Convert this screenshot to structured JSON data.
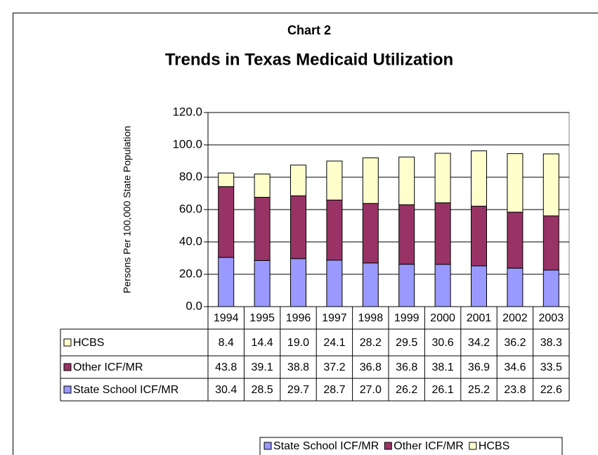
{
  "chart_data": {
    "type": "stacked_bar",
    "title": "Chart 2",
    "subtitle": "Trends in Texas Medicaid Utilization",
    "y_label": "Persons Per 100,000 State Population",
    "categories": [
      "1994",
      "1995",
      "1996",
      "1997",
      "1998",
      "1999",
      "2000",
      "2001",
      "2002",
      "2003"
    ],
    "series": [
      {
        "name": "State School ICF/MR",
        "color": "#9999ff",
        "values": [
          30.4,
          28.5,
          29.7,
          28.7,
          27.0,
          26.2,
          26.1,
          25.2,
          23.8,
          22.6
        ],
        "value_labels": [
          "30.4",
          "28.5",
          "29.7",
          "28.7",
          "27.0",
          "26.2",
          "26.1",
          "25.2",
          "23.8",
          "22.6"
        ]
      },
      {
        "name": "Other ICF/MR",
        "color": "#993366",
        "values": [
          43.8,
          39.1,
          38.8,
          37.2,
          36.8,
          36.8,
          38.1,
          36.9,
          34.6,
          33.5
        ],
        "value_labels": [
          "43.8",
          "39.1",
          "38.8",
          "37.2",
          "36.8",
          "36.8",
          "38.1",
          "36.9",
          "34.6",
          "33.5"
        ]
      },
      {
        "name": "HCBS",
        "color": "#ffffcc",
        "values": [
          8.4,
          14.4,
          19.0,
          24.1,
          28.2,
          29.5,
          30.6,
          34.2,
          36.2,
          38.3
        ],
        "value_labels": [
          "8.4",
          "14.4",
          "19.0",
          "24.1",
          "28.2",
          "29.5",
          "30.6",
          "34.2",
          "36.2",
          "38.3"
        ]
      }
    ],
    "ylim": [
      0,
      120
    ],
    "yticks": [
      {
        "value": 0,
        "label": "0.0"
      },
      {
        "value": 20,
        "label": "20.0"
      },
      {
        "value": 40,
        "label": "40.0"
      },
      {
        "value": 60,
        "label": "60.0"
      },
      {
        "value": 80,
        "label": "80.0"
      },
      {
        "value": 100,
        "label": "100.0"
      },
      {
        "value": 120,
        "label": "120.0"
      }
    ],
    "grid": true,
    "legend": "bottom"
  }
}
